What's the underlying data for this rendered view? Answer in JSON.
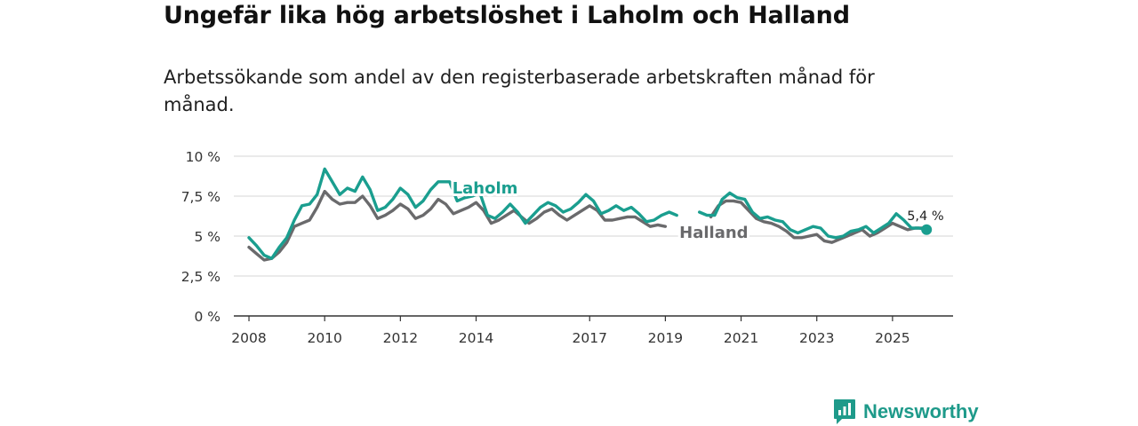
{
  "title": "Ungefär lika hög arbetslöshet i Laholm och Halland",
  "subtitle": "Arbetssökande som andel av den registerbaserade arbetskraften månad för månad.",
  "brand": {
    "name": "Newsworthy",
    "icon": "newsworthy-logo-icon",
    "color": "#1e9a8a"
  },
  "chart_data": {
    "type": "line",
    "ylim": [
      0,
      10
    ],
    "xlim": [
      2007.6,
      2026.6
    ],
    "y_ticks": [
      {
        "value": 10,
        "label": "10 %"
      },
      {
        "value": 7.5,
        "label": "7,5 %"
      },
      {
        "value": 5,
        "label": "5 %"
      },
      {
        "value": 2.5,
        "label": "2,5 %"
      },
      {
        "value": 0,
        "label": "0 %"
      }
    ],
    "x_ticks": [
      {
        "value": 2008,
        "label": "2008"
      },
      {
        "value": 2010,
        "label": "2010"
      },
      {
        "value": 2012,
        "label": "2012"
      },
      {
        "value": 2014,
        "label": "2014"
      },
      {
        "value": 2017,
        "label": "2017"
      },
      {
        "value": 2019,
        "label": "2019"
      },
      {
        "value": 2021,
        "label": "2021"
      },
      {
        "value": 2023,
        "label": "2023"
      },
      {
        "value": 2025,
        "label": "2025"
      }
    ],
    "grid": true,
    "end_label": "5,4 %",
    "series": [
      {
        "name": "Laholm",
        "color": "#1a9e8f",
        "label_at": [
          2013.3,
          8.4
        ],
        "points": [
          [
            2008.0,
            4.9
          ],
          [
            2008.2,
            4.4
          ],
          [
            2008.4,
            3.8
          ],
          [
            2008.6,
            3.6
          ],
          [
            2008.8,
            4.3
          ],
          [
            2009.0,
            4.9
          ],
          [
            2009.2,
            6.0
          ],
          [
            2009.4,
            6.9
          ],
          [
            2009.6,
            7.0
          ],
          [
            2009.8,
            7.6
          ],
          [
            2010.0,
            9.2
          ],
          [
            2010.2,
            8.4
          ],
          [
            2010.4,
            7.6
          ],
          [
            2010.6,
            8.0
          ],
          [
            2010.8,
            7.8
          ],
          [
            2011.0,
            8.7
          ],
          [
            2011.2,
            7.9
          ],
          [
            2011.4,
            6.6
          ],
          [
            2011.6,
            6.8
          ],
          [
            2011.8,
            7.3
          ],
          [
            2012.0,
            8.0
          ],
          [
            2012.2,
            7.6
          ],
          [
            2012.4,
            6.8
          ],
          [
            2012.6,
            7.2
          ],
          [
            2012.8,
            7.9
          ],
          [
            2013.0,
            8.4
          ],
          [
            2013.3,
            8.4
          ],
          [
            2013.5,
            7.2
          ],
          [
            2013.7,
            7.4
          ],
          [
            2013.9,
            7.5
          ],
          [
            2014.1,
            7.7
          ],
          [
            2014.3,
            6.3
          ],
          [
            2014.5,
            6.1
          ],
          [
            2014.7,
            6.5
          ],
          [
            2014.9,
            7.0
          ],
          [
            2015.1,
            6.5
          ],
          [
            2015.3,
            5.8
          ],
          [
            2015.5,
            6.3
          ],
          [
            2015.7,
            6.8
          ],
          [
            2015.9,
            7.1
          ],
          [
            2016.1,
            6.9
          ],
          [
            2016.3,
            6.5
          ],
          [
            2016.5,
            6.7
          ],
          [
            2016.7,
            7.1
          ],
          [
            2016.9,
            7.6
          ],
          [
            2017.1,
            7.2
          ],
          [
            2017.3,
            6.4
          ],
          [
            2017.5,
            6.6
          ],
          [
            2017.7,
            6.9
          ],
          [
            2017.9,
            6.6
          ],
          [
            2018.1,
            6.8
          ],
          [
            2018.3,
            6.4
          ],
          [
            2018.5,
            5.9
          ],
          [
            2018.7,
            6.0
          ],
          [
            2018.9,
            6.3
          ],
          [
            2019.1,
            6.5
          ],
          [
            2019.3,
            6.3
          ],
          null,
          [
            2019.9,
            6.5
          ],
          [
            2020.1,
            6.3
          ],
          [
            2020.3,
            6.3
          ],
          [
            2020.5,
            7.3
          ],
          [
            2020.7,
            7.7
          ],
          [
            2020.9,
            7.4
          ],
          [
            2021.1,
            7.3
          ],
          [
            2021.3,
            6.5
          ],
          [
            2021.5,
            6.1
          ],
          [
            2021.7,
            6.2
          ],
          [
            2021.9,
            6.0
          ],
          [
            2022.1,
            5.9
          ],
          [
            2022.3,
            5.4
          ],
          [
            2022.5,
            5.2
          ],
          [
            2022.7,
            5.4
          ],
          [
            2022.9,
            5.6
          ],
          [
            2023.1,
            5.5
          ],
          [
            2023.3,
            5.0
          ],
          [
            2023.5,
            4.9
          ],
          [
            2023.7,
            5.0
          ],
          [
            2023.9,
            5.3
          ],
          [
            2024.1,
            5.4
          ],
          [
            2024.3,
            5.6
          ],
          [
            2024.5,
            5.2
          ],
          [
            2024.7,
            5.5
          ],
          [
            2024.9,
            5.8
          ],
          [
            2025.1,
            6.4
          ],
          [
            2025.3,
            6.0
          ],
          [
            2025.5,
            5.5
          ],
          [
            2025.7,
            5.5
          ],
          [
            2025.9,
            5.4
          ]
        ]
      },
      {
        "name": "Halland",
        "color": "#6a6a6c",
        "label_at": [
          2019.3,
          5.6
        ],
        "points": [
          [
            2008.0,
            4.3
          ],
          [
            2008.2,
            3.9
          ],
          [
            2008.4,
            3.5
          ],
          [
            2008.6,
            3.6
          ],
          [
            2008.8,
            4.0
          ],
          [
            2009.0,
            4.6
          ],
          [
            2009.2,
            5.6
          ],
          [
            2009.4,
            5.8
          ],
          [
            2009.6,
            6.0
          ],
          [
            2009.8,
            6.8
          ],
          [
            2010.0,
            7.8
          ],
          [
            2010.2,
            7.3
          ],
          [
            2010.4,
            7.0
          ],
          [
            2010.6,
            7.1
          ],
          [
            2010.8,
            7.1
          ],
          [
            2011.0,
            7.5
          ],
          [
            2011.2,
            6.9
          ],
          [
            2011.4,
            6.1
          ],
          [
            2011.6,
            6.3
          ],
          [
            2011.8,
            6.6
          ],
          [
            2012.0,
            7.0
          ],
          [
            2012.2,
            6.7
          ],
          [
            2012.4,
            6.1
          ],
          [
            2012.6,
            6.3
          ],
          [
            2012.8,
            6.7
          ],
          [
            2013.0,
            7.3
          ],
          [
            2013.2,
            7.0
          ],
          [
            2013.4,
            6.4
          ],
          [
            2013.6,
            6.6
          ],
          [
            2013.8,
            6.8
          ],
          [
            2014.0,
            7.1
          ],
          [
            2014.2,
            6.6
          ],
          [
            2014.4,
            5.8
          ],
          [
            2014.6,
            6.0
          ],
          [
            2014.8,
            6.3
          ],
          [
            2015.0,
            6.6
          ],
          [
            2015.2,
            6.2
          ],
          [
            2015.4,
            5.8
          ],
          [
            2015.6,
            6.1
          ],
          [
            2015.8,
            6.5
          ],
          [
            2016.0,
            6.7
          ],
          [
            2016.2,
            6.3
          ],
          [
            2016.4,
            6.0
          ],
          [
            2016.6,
            6.3
          ],
          [
            2016.8,
            6.6
          ],
          [
            2017.0,
            6.9
          ],
          [
            2017.2,
            6.6
          ],
          [
            2017.4,
            6.0
          ],
          [
            2017.6,
            6.0
          ],
          [
            2017.8,
            6.1
          ],
          [
            2018.0,
            6.2
          ],
          [
            2018.2,
            6.2
          ],
          [
            2018.4,
            5.9
          ],
          [
            2018.6,
            5.6
          ],
          [
            2018.8,
            5.7
          ],
          [
            2019.0,
            5.6
          ],
          null,
          [
            2020.2,
            6.2
          ],
          [
            2020.4,
            6.9
          ],
          [
            2020.6,
            7.2
          ],
          [
            2020.8,
            7.2
          ],
          [
            2021.0,
            7.1
          ],
          [
            2021.2,
            6.6
          ],
          [
            2021.4,
            6.1
          ],
          [
            2021.6,
            5.9
          ],
          [
            2021.8,
            5.8
          ],
          [
            2022.0,
            5.6
          ],
          [
            2022.2,
            5.3
          ],
          [
            2022.4,
            4.9
          ],
          [
            2022.6,
            4.9
          ],
          [
            2022.8,
            5.0
          ],
          [
            2023.0,
            5.1
          ],
          [
            2023.2,
            4.7
          ],
          [
            2023.4,
            4.6
          ],
          [
            2023.6,
            4.8
          ],
          [
            2023.8,
            5.0
          ],
          [
            2024.0,
            5.2
          ],
          [
            2024.2,
            5.4
          ],
          [
            2024.4,
            5.0
          ],
          [
            2024.6,
            5.2
          ],
          [
            2024.8,
            5.5
          ],
          [
            2025.0,
            5.8
          ],
          [
            2025.2,
            5.6
          ],
          [
            2025.4,
            5.4
          ],
          [
            2025.6,
            5.5
          ],
          [
            2025.8,
            5.5
          ]
        ]
      }
    ]
  }
}
